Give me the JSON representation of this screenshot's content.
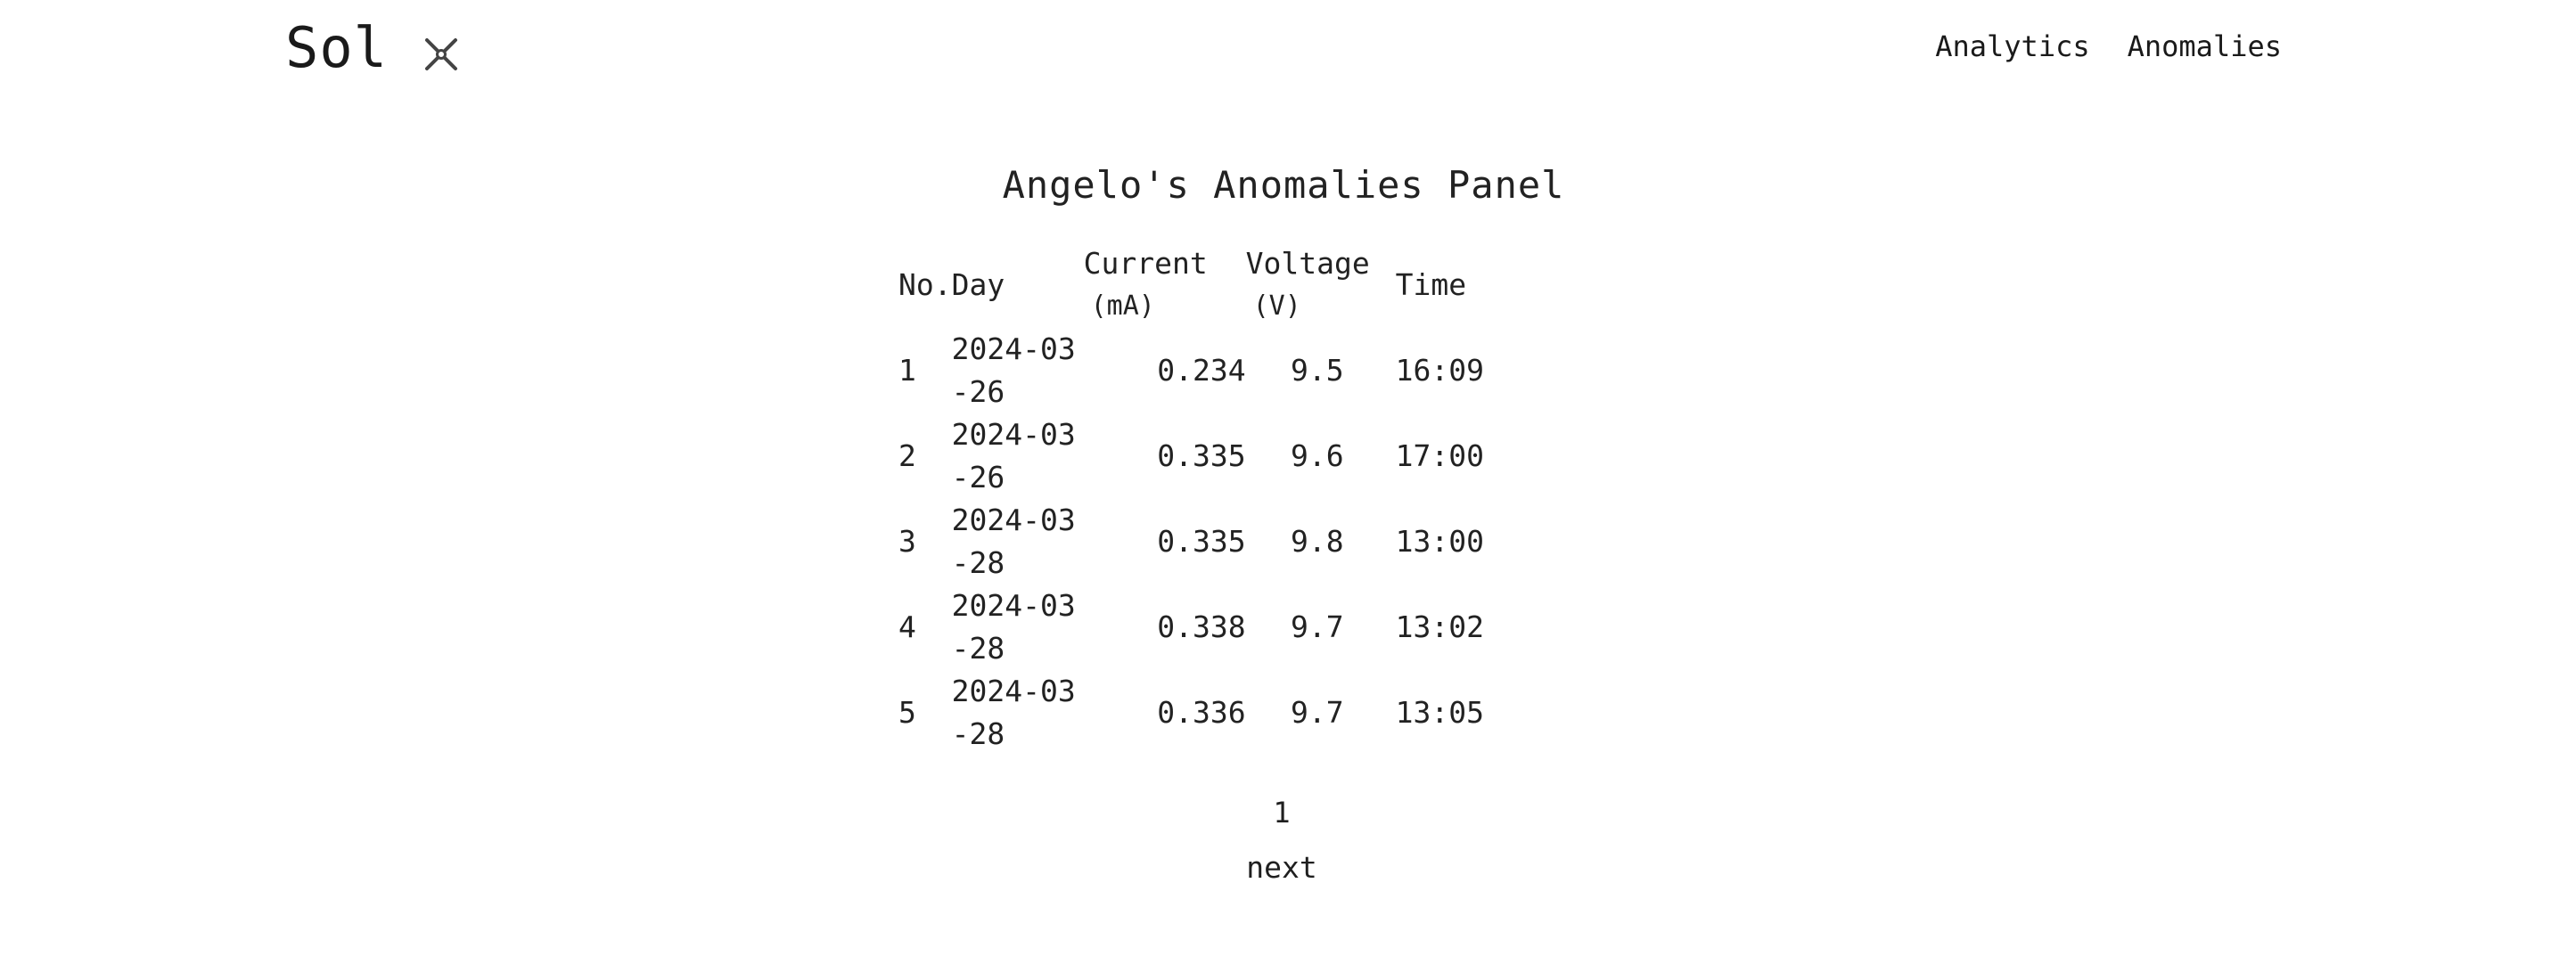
{
  "header": {
    "brand": "Sol",
    "brand_icon": "close-icon",
    "nav": [
      {
        "label": "Analytics"
      },
      {
        "label": "Anomalies"
      }
    ]
  },
  "panel": {
    "title": "Angelo's Anomalies Panel"
  },
  "table": {
    "columns": {
      "no": "No.",
      "day": "Day",
      "current": "Current",
      "current_unit": "(mA)",
      "voltage": "Voltage",
      "voltage_unit": "(V)",
      "time": "Time"
    },
    "rows": [
      {
        "no": "1",
        "day": "2024-03-26",
        "current": "0.234",
        "voltage": "9.5",
        "time": "16:09"
      },
      {
        "no": "2",
        "day": "2024-03-26",
        "current": "0.335",
        "voltage": "9.6",
        "time": "17:00"
      },
      {
        "no": "3",
        "day": "2024-03-28",
        "current": "0.335",
        "voltage": "9.8",
        "time": "13:00"
      },
      {
        "no": "4",
        "day": "2024-03-28",
        "current": "0.338",
        "voltage": "9.7",
        "time": "13:02"
      },
      {
        "no": "5",
        "day": "2024-03-28",
        "current": "0.336",
        "voltage": "9.7",
        "time": "13:05"
      }
    ]
  },
  "pagination": {
    "page": "1",
    "next_label": "next"
  }
}
